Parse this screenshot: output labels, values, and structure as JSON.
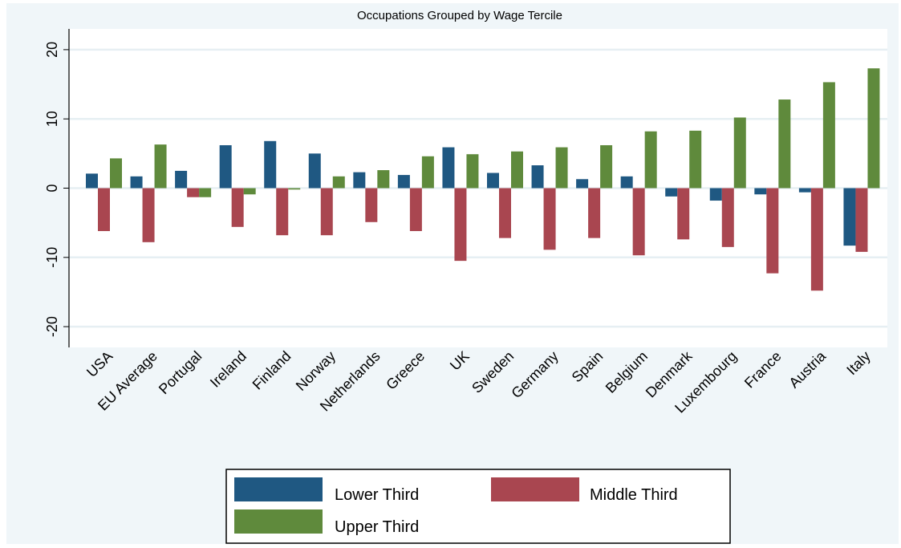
{
  "chart_data": {
    "type": "bar",
    "title": "Occupations Grouped by Wage Tercile",
    "xlabel": "",
    "ylabel": "",
    "ylim": [
      -23,
      23
    ],
    "yticks": [
      -20,
      -10,
      0,
      10,
      20
    ],
    "ytick_labels": [
      "-20",
      "-10",
      "0",
      "10",
      "20"
    ],
    "grid": true,
    "legend_position": "bottom",
    "categories": [
      "USA",
      "EU Average",
      "Portugal",
      "Ireland",
      "Finland",
      "Norway",
      "Netherlands",
      "Greece",
      "UK",
      "Sweden",
      "Germany",
      "Spain",
      "Belgium",
      "Denmark",
      "Luxembourg",
      "France",
      "Austria",
      "Italy"
    ],
    "series": [
      {
        "name": "Lower Third",
        "color": "#1f5882",
        "values": [
          2.1,
          1.7,
          2.5,
          6.2,
          6.8,
          5.0,
          2.3,
          1.9,
          5.9,
          2.2,
          3.3,
          1.3,
          1.7,
          -1.2,
          -1.8,
          -0.9,
          -0.6,
          -8.3
        ]
      },
      {
        "name": "Middle Third",
        "color": "#a94650",
        "values": [
          -6.2,
          -7.8,
          -1.3,
          -5.6,
          -6.8,
          -6.8,
          -4.9,
          -6.2,
          -10.5,
          -7.2,
          -8.9,
          -7.2,
          -9.7,
          -7.4,
          -8.5,
          -12.3,
          -14.8,
          -9.2
        ]
      },
      {
        "name": "Upper Third",
        "color": "#5f8a3c",
        "values": [
          4.3,
          6.3,
          -1.3,
          -0.9,
          -0.2,
          1.7,
          2.6,
          4.6,
          4.9,
          5.3,
          5.9,
          6.2,
          8.2,
          8.3,
          10.2,
          12.8,
          15.3,
          17.3
        ]
      }
    ]
  }
}
